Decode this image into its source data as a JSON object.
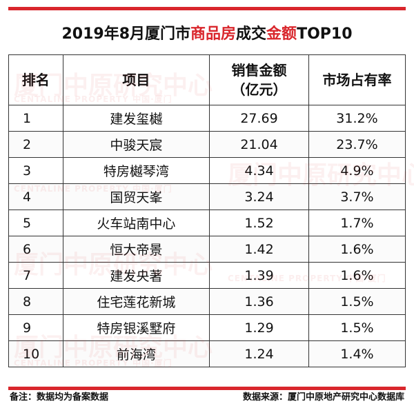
{
  "title": {
    "part1": "2019年8月厦门市",
    "highlight1": "商品房",
    "part2": "成交",
    "highlight2": "金额",
    "part3": "TOP10"
  },
  "table": {
    "headers": {
      "rank": "排名",
      "project": "项目",
      "sales_line1": "销售金额",
      "sales_line2": "（亿元）",
      "share": "市场占有率"
    },
    "rows": [
      {
        "rank": "1",
        "project": "建发玺樾",
        "sales": "27.69",
        "share": "31.2%"
      },
      {
        "rank": "2",
        "project": "中骏天宸",
        "sales": "21.04",
        "share": "23.7%"
      },
      {
        "rank": "3",
        "project": "特房樾琴湾",
        "sales": "4.34",
        "share": "4.9%"
      },
      {
        "rank": "4",
        "project": "国贸天峯",
        "sales": "3.24",
        "share": "3.7%"
      },
      {
        "rank": "5",
        "project": "火车站南中心",
        "sales": "1.52",
        "share": "1.7%"
      },
      {
        "rank": "6",
        "project": "恒大帝景",
        "sales": "1.42",
        "share": "1.6%"
      },
      {
        "rank": "7",
        "project": "建发央著",
        "sales": "1.39",
        "share": "1.6%"
      },
      {
        "rank": "8",
        "project": "住宅莲花新城",
        "sales": "1.36",
        "share": "1.5%"
      },
      {
        "rank": "9",
        "project": "特房银溪墅府",
        "sales": "1.29",
        "share": "1.5%"
      },
      {
        "rank": "10",
        "project": "前海湾",
        "sales": "1.24",
        "share": "1.4%"
      }
    ]
  },
  "footer": {
    "note": "备注：数据均为备案数据",
    "source": "数据来源：厦门中原地产研究中心数据库"
  },
  "watermark": {
    "main": "厦门中原研究中心",
    "sub": "CENTALINE PROPERTY  中国·厦门"
  },
  "colors": {
    "accent": "#d9262c"
  }
}
